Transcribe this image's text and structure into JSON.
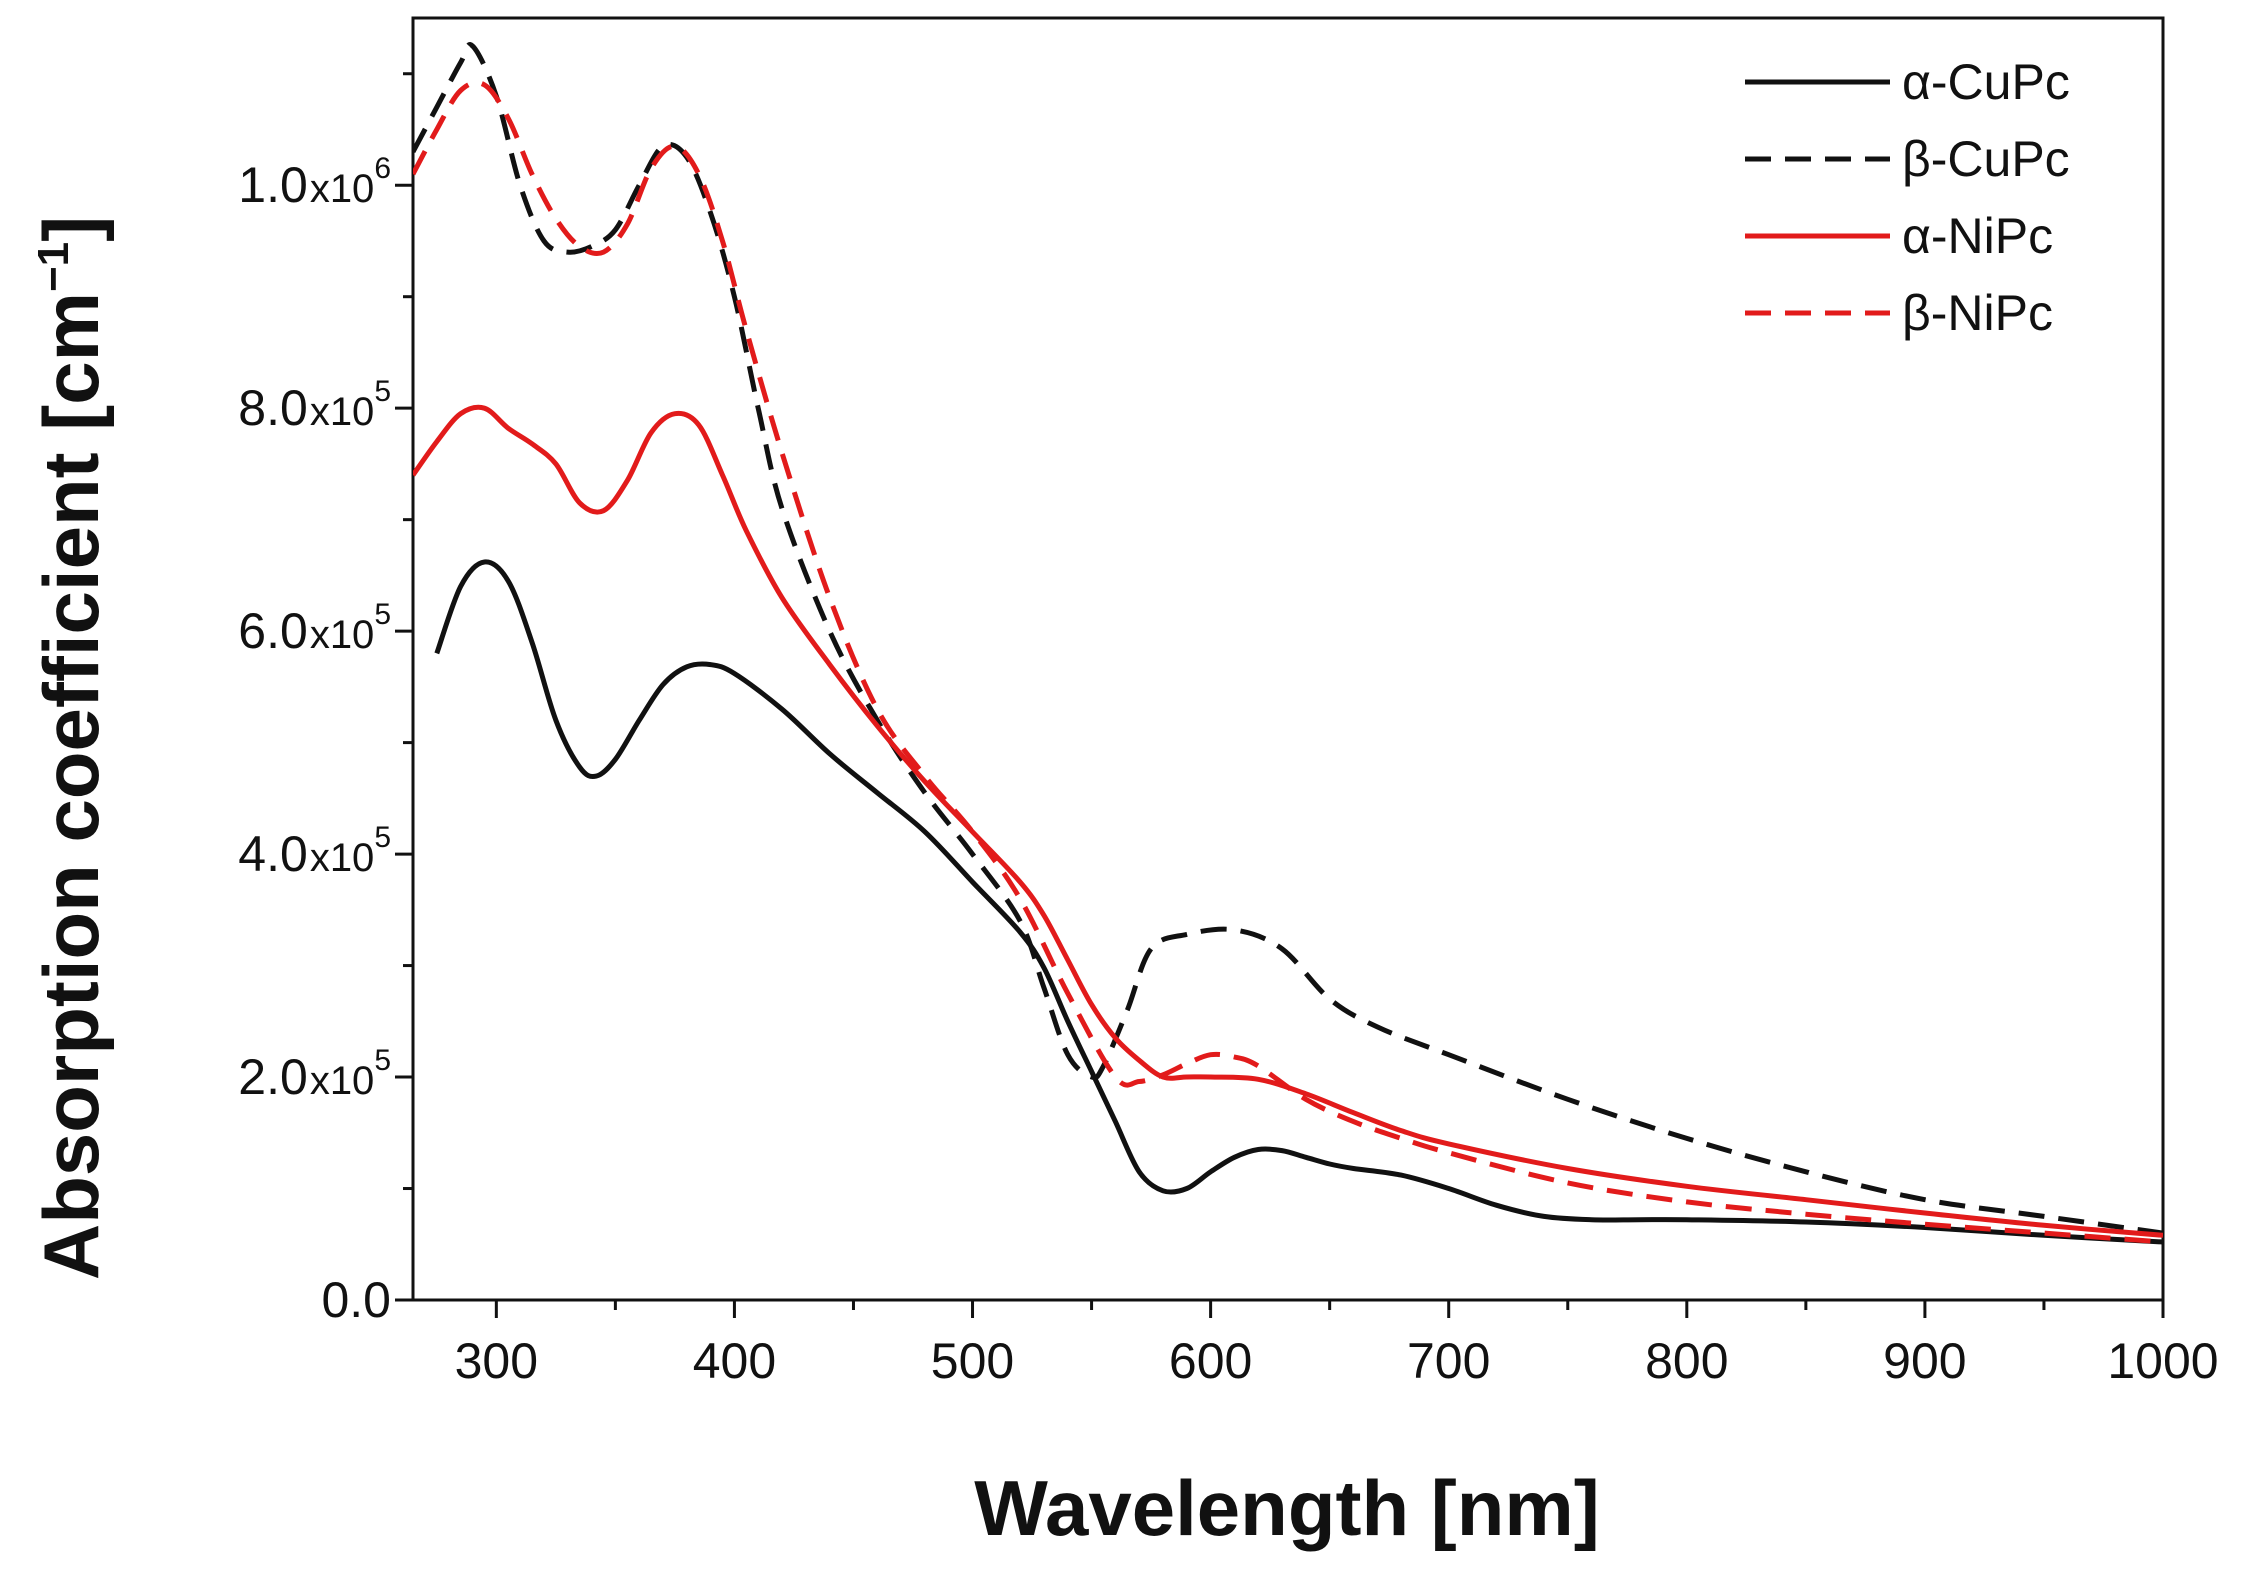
{
  "chart_data": {
    "type": "line",
    "title": "",
    "xlabel": "Wavelength [nm]",
    "ylabel": "Absorption coefficient [cm",
    "ylabel_sup": "−1",
    "ylabel_close": "]",
    "xlim": [
      265,
      1000
    ],
    "ylim": [
      0,
      1150000
    ],
    "grid": false,
    "legend_position": "top-right",
    "x_ticks": [
      {
        "value": 300,
        "label": "300"
      },
      {
        "value": 400,
        "label": "400"
      },
      {
        "value": 500,
        "label": "500"
      },
      {
        "value": 600,
        "label": "600"
      },
      {
        "value": 700,
        "label": "700"
      },
      {
        "value": 800,
        "label": "800"
      },
      {
        "value": 900,
        "label": "900"
      },
      {
        "value": 1000,
        "label": "1000"
      }
    ],
    "y_ticks": [
      {
        "value": 0,
        "mantissa": "0.0",
        "base": "",
        "exp": ""
      },
      {
        "value": 200000,
        "mantissa": "2.0",
        "base": "x10",
        "exp": "5"
      },
      {
        "value": 400000,
        "mantissa": "4.0",
        "base": "x10",
        "exp": "5"
      },
      {
        "value": 600000,
        "mantissa": "6.0",
        "base": "x10",
        "exp": "5"
      },
      {
        "value": 800000,
        "mantissa": "8.0",
        "base": "x10",
        "exp": "5"
      },
      {
        "value": 1000000,
        "mantissa": "1.0",
        "base": "x10",
        "exp": "6"
      }
    ],
    "x_minor_step": 50,
    "y_minor_step": 100000,
    "series": [
      {
        "name": "α-CuPc",
        "color": "#111111",
        "dashed": false,
        "x": [
          275,
          285,
          295,
          305,
          315,
          325,
          335,
          342,
          350,
          360,
          370,
          380,
          390,
          400,
          420,
          440,
          460,
          480,
          500,
          520,
          530,
          540,
          550,
          560,
          570,
          580,
          590,
          600,
          610,
          620,
          630,
          640,
          650,
          660,
          680,
          700,
          720,
          740,
          760,
          780,
          800,
          850,
          900,
          950,
          1000
        ],
        "y": [
          580000,
          640000,
          662000,
          645000,
          590000,
          520000,
          478000,
          470000,
          485000,
          520000,
          552000,
          568000,
          570000,
          562000,
          530000,
          490000,
          455000,
          420000,
          375000,
          330000,
          298000,
          250000,
          205000,
          160000,
          115000,
          98000,
          100000,
          115000,
          128000,
          135000,
          134000,
          128000,
          122000,
          118000,
          112000,
          100000,
          85000,
          75000,
          72000,
          72000,
          72000,
          70000,
          65000,
          58000,
          52000
        ]
      },
      {
        "name": "β-CuPc",
        "color": "#111111",
        "dashed": true,
        "x": [
          265,
          275,
          285,
          290,
          300,
          310,
          320,
          330,
          340,
          350,
          360,
          370,
          380,
          390,
          400,
          410,
          420,
          440,
          460,
          480,
          500,
          520,
          530,
          540,
          550,
          555,
          565,
          575,
          590,
          610,
          630,
          650,
          670,
          700,
          750,
          800,
          850,
          900,
          950,
          1000
        ],
        "y": [
          1030000,
          1070000,
          1110000,
          1125000,
          1080000,
          1000000,
          950000,
          940000,
          945000,
          960000,
          1000000,
          1035000,
          1025000,
          975000,
          900000,
          800000,
          710000,
          600000,
          520000,
          455000,
          400000,
          340000,
          280000,
          220000,
          200000,
          210000,
          260000,
          315000,
          328000,
          332000,
          315000,
          270000,
          245000,
          220000,
          180000,
          145000,
          115000,
          90000,
          75000,
          60000
        ]
      },
      {
        "name": "α-NiPc",
        "color": "#e21b1b",
        "dashed": false,
        "x": [
          265,
          275,
          285,
          295,
          305,
          315,
          325,
          335,
          345,
          355,
          365,
          375,
          385,
          395,
          405,
          420,
          440,
          460,
          480,
          500,
          520,
          530,
          540,
          550,
          560,
          570,
          580,
          590,
          600,
          620,
          640,
          660,
          680,
          700,
          750,
          800,
          850,
          900,
          950,
          1000
        ],
        "y": [
          740000,
          770000,
          795000,
          800000,
          782000,
          768000,
          750000,
          715000,
          708000,
          735000,
          778000,
          795000,
          785000,
          740000,
          690000,
          630000,
          570000,
          515000,
          465000,
          420000,
          375000,
          345000,
          305000,
          265000,
          235000,
          215000,
          200000,
          200000,
          200000,
          198000,
          185000,
          168000,
          152000,
          140000,
          118000,
          102000,
          90000,
          78000,
          67000,
          58000
        ]
      },
      {
        "name": "β-NiPc",
        "color": "#e21b1b",
        "dashed": true,
        "x": [
          265,
          275,
          285,
          295,
          305,
          315,
          325,
          335,
          345,
          355,
          365,
          375,
          385,
          395,
          405,
          420,
          440,
          460,
          480,
          500,
          520,
          540,
          560,
          570,
          580,
          590,
          600,
          610,
          620,
          640,
          660,
          680,
          700,
          750,
          800,
          850,
          900,
          950,
          1000
        ],
        "y": [
          1010000,
          1050000,
          1085000,
          1090000,
          1060000,
          1010000,
          970000,
          945000,
          940000,
          965000,
          1015000,
          1035000,
          1010000,
          950000,
          870000,
          760000,
          630000,
          530000,
          470000,
          420000,
          360000,
          275000,
          200000,
          196000,
          202000,
          212000,
          220000,
          218000,
          210000,
          180000,
          160000,
          145000,
          132000,
          105000,
          88000,
          77000,
          68000,
          60000,
          52000
        ]
      }
    ]
  }
}
